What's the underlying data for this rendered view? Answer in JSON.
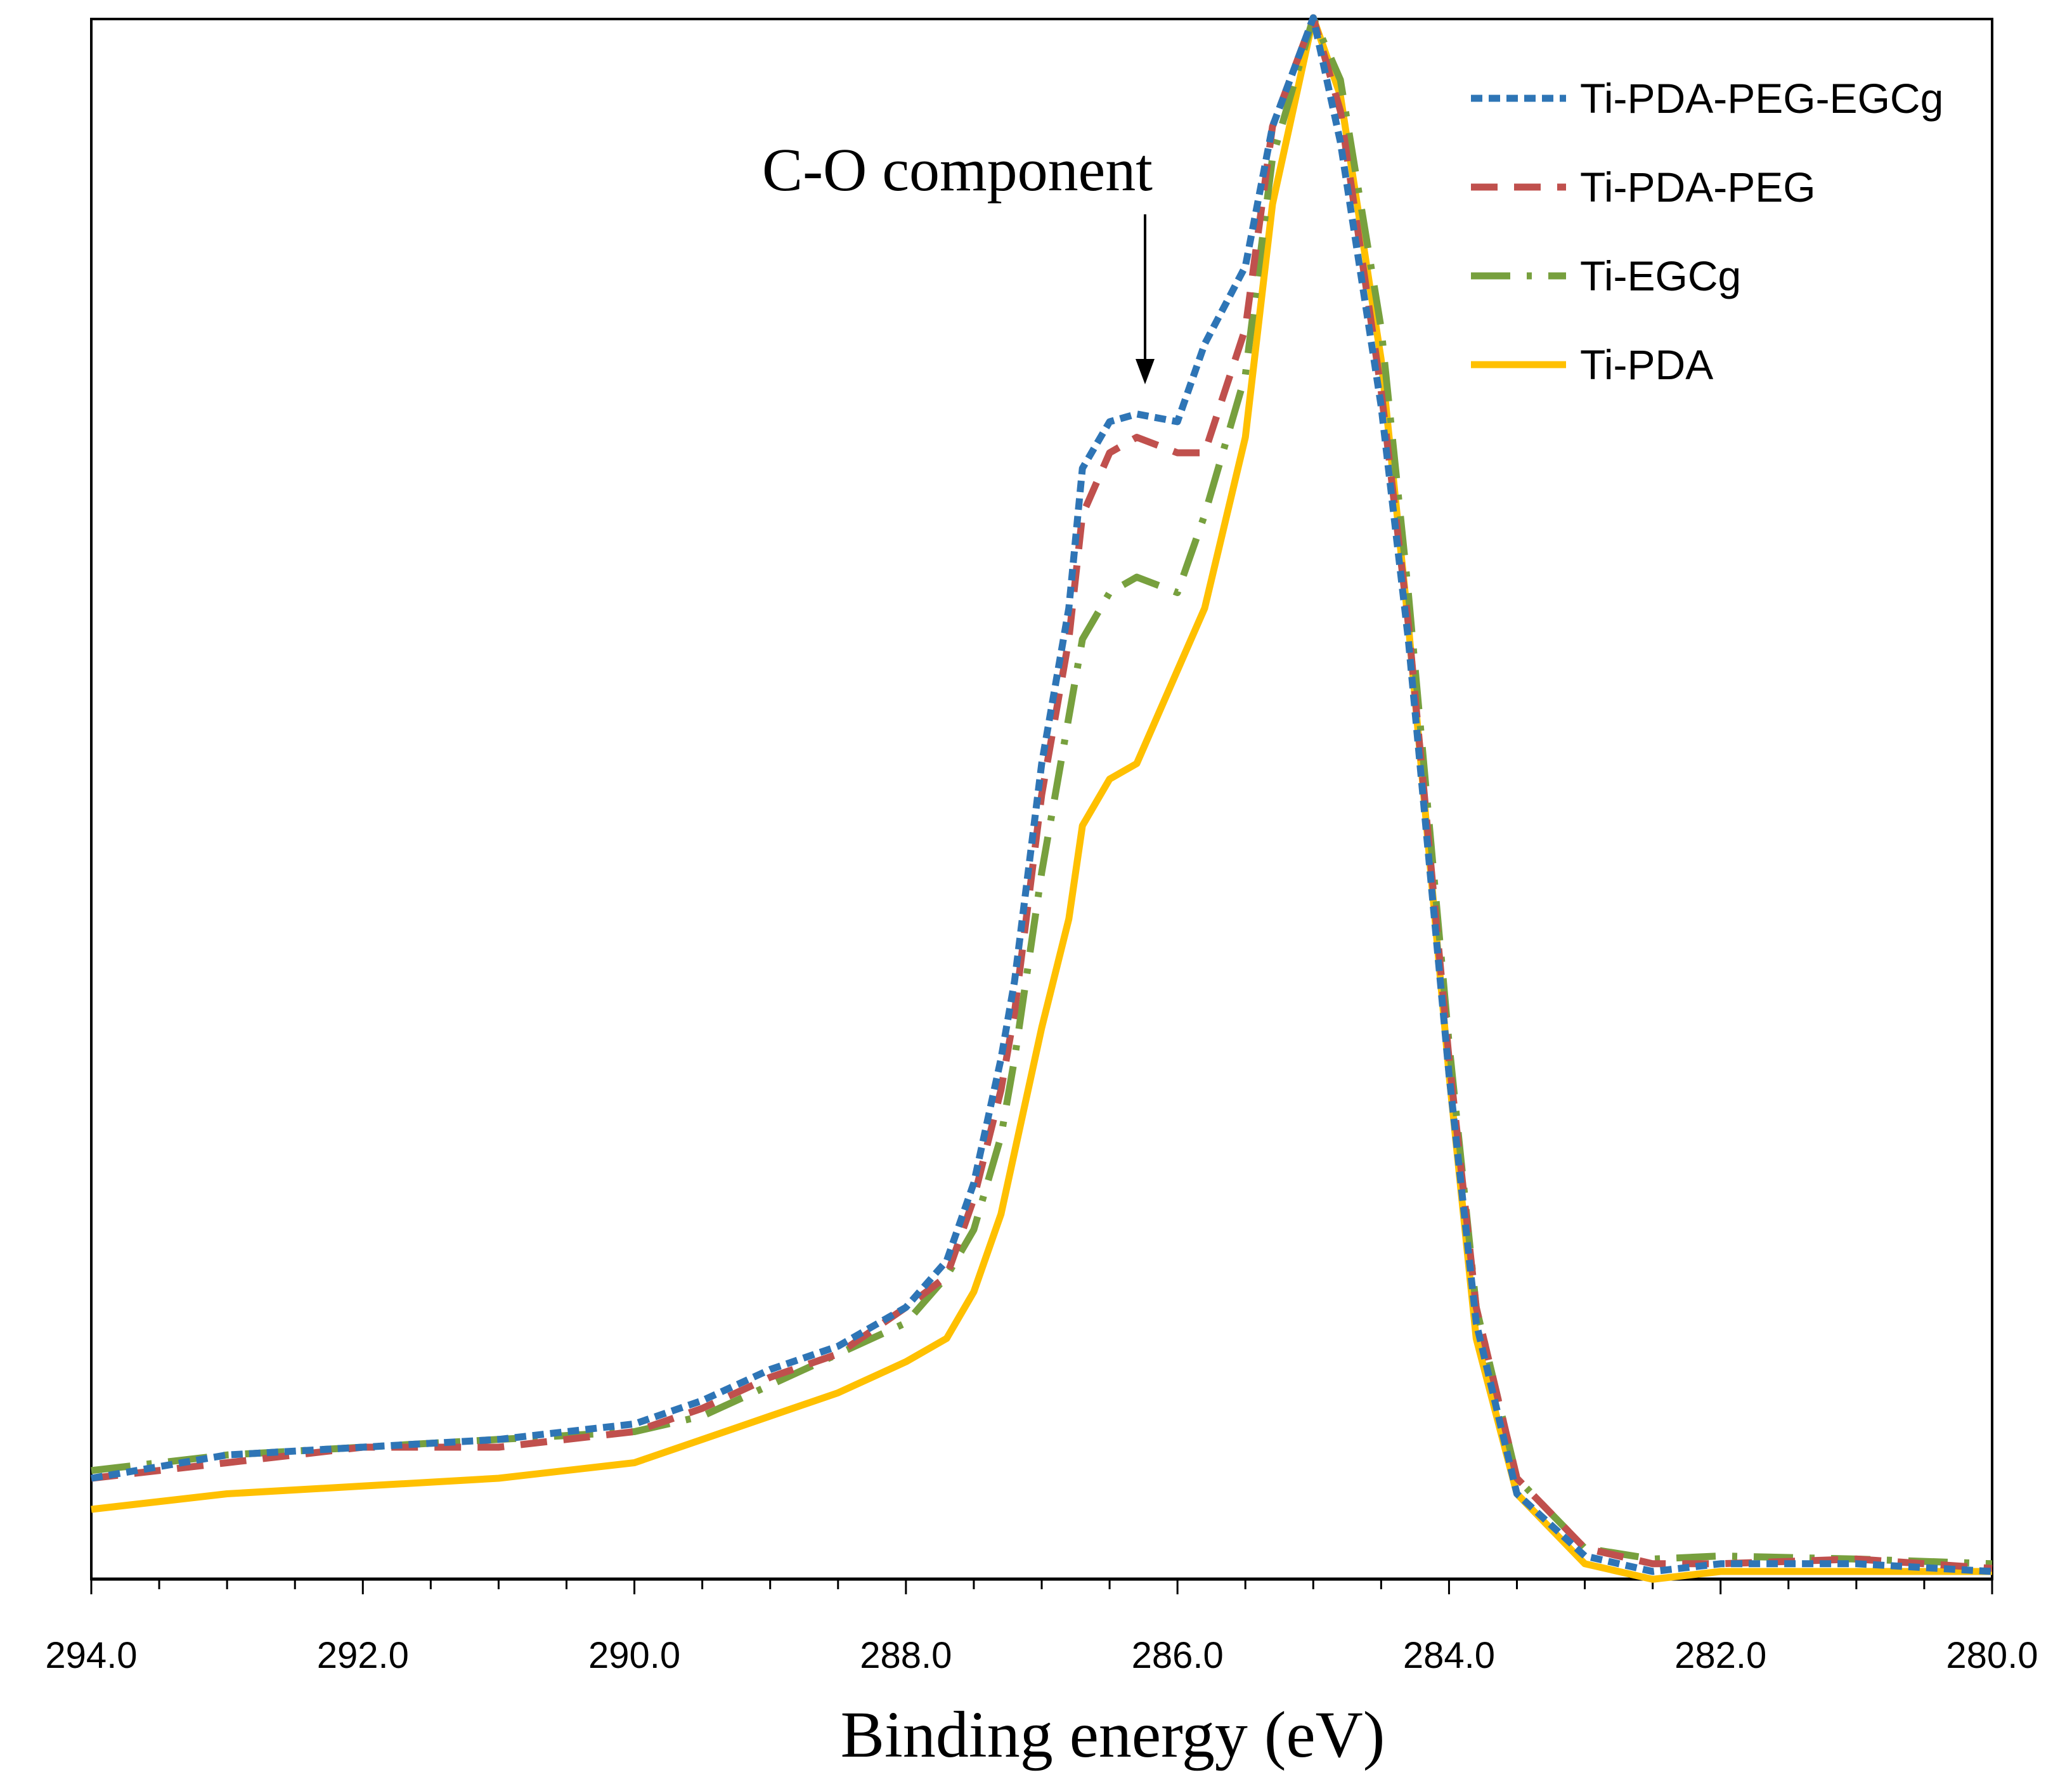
{
  "chart_data": {
    "type": "line",
    "title": "",
    "xlabel": "Binding energy (eV)",
    "ylabel": "",
    "xlim": [
      294.0,
      280.0
    ],
    "x_reversed": true,
    "ylim": [
      0,
      1
    ],
    "grid": false,
    "legend_position": "top-right",
    "x_ticks": [
      "294.0",
      "292.0",
      "290.0",
      "288.0",
      "286.0",
      "284.0",
      "282.0",
      "280.0"
    ],
    "annotation": {
      "text": "C-O component",
      "x": 286.3,
      "y": 0.77
    },
    "series": [
      {
        "name": "Ti-PDA-PEG-EGCg",
        "color": "#2E75B6",
        "dash": "dotted",
        "x": [
          294.0,
          293.0,
          292.0,
          291.0,
          290.0,
          289.5,
          289.0,
          288.5,
          288.0,
          287.7,
          287.5,
          287.3,
          287.2,
          287.0,
          286.8,
          286.7,
          286.5,
          286.3,
          286.0,
          285.8,
          285.5,
          285.3,
          285.0,
          284.8,
          284.5,
          284.3,
          284.0,
          283.8,
          283.5,
          283.0,
          282.5,
          282.0,
          281.0,
          280.0
        ],
        "y": [
          0.06,
          0.075,
          0.08,
          0.085,
          0.095,
          0.11,
          0.13,
          0.145,
          0.17,
          0.2,
          0.25,
          0.33,
          0.38,
          0.52,
          0.62,
          0.71,
          0.74,
          0.745,
          0.74,
          0.79,
          0.84,
          0.93,
          1.0,
          0.92,
          0.75,
          0.6,
          0.32,
          0.16,
          0.05,
          0.01,
          0.0,
          0.005,
          0.005,
          0.0
        ]
      },
      {
        "name": "Ti-PDA-PEG",
        "color": "#C0504D",
        "dash": "dashed",
        "x": [
          294.0,
          293.0,
          292.0,
          291.0,
          290.0,
          289.5,
          289.0,
          288.5,
          288.0,
          287.7,
          287.5,
          287.3,
          287.2,
          287.0,
          286.8,
          286.7,
          286.5,
          286.3,
          286.0,
          285.8,
          285.5,
          285.3,
          285.0,
          284.8,
          284.5,
          284.3,
          284.0,
          283.8,
          283.5,
          283.0,
          282.5,
          282.0,
          281.0,
          280.0
        ],
        "y": [
          0.06,
          0.07,
          0.08,
          0.08,
          0.09,
          0.105,
          0.125,
          0.14,
          0.17,
          0.19,
          0.24,
          0.31,
          0.36,
          0.5,
          0.6,
          0.68,
          0.72,
          0.73,
          0.72,
          0.72,
          0.8,
          0.93,
          1.0,
          0.94,
          0.76,
          0.61,
          0.33,
          0.17,
          0.06,
          0.015,
          0.005,
          0.005,
          0.008,
          0.002
        ]
      },
      {
        "name": "Ti-EGCg",
        "color": "#77A03E",
        "dash": "dashdot",
        "x": [
          294.0,
          293.0,
          292.0,
          291.0,
          290.0,
          289.5,
          289.0,
          288.5,
          288.0,
          287.7,
          287.5,
          287.3,
          287.2,
          287.0,
          286.8,
          286.7,
          286.5,
          286.3,
          286.0,
          285.8,
          285.5,
          285.3,
          285.0,
          284.8,
          284.5,
          284.3,
          284.0,
          283.8,
          283.5,
          283.0,
          282.5,
          282.0,
          281.0,
          280.0
        ],
        "y": [
          0.065,
          0.075,
          0.08,
          0.085,
          0.09,
          0.1,
          0.12,
          0.14,
          0.16,
          0.19,
          0.22,
          0.28,
          0.33,
          0.45,
          0.55,
          0.6,
          0.63,
          0.64,
          0.63,
          0.68,
          0.77,
          0.91,
          1.0,
          0.96,
          0.8,
          0.63,
          0.34,
          0.17,
          0.06,
          0.015,
          0.008,
          0.01,
          0.008,
          0.005
        ]
      },
      {
        "name": "Ti-PDA",
        "color": "#FFC000",
        "dash": "solid",
        "x": [
          294.0,
          293.0,
          292.0,
          291.0,
          290.0,
          289.5,
          289.0,
          288.5,
          288.0,
          287.7,
          287.5,
          287.3,
          287.2,
          287.0,
          286.8,
          286.7,
          286.5,
          286.3,
          286.0,
          285.8,
          285.5,
          285.3,
          285.0,
          284.8,
          284.5,
          284.3,
          284.0,
          283.8,
          283.5,
          283.0,
          282.5,
          282.0,
          281.0,
          280.0
        ],
        "y": [
          0.04,
          0.05,
          0.055,
          0.06,
          0.07,
          0.085,
          0.1,
          0.115,
          0.135,
          0.15,
          0.18,
          0.23,
          0.27,
          0.35,
          0.42,
          0.48,
          0.51,
          0.52,
          0.58,
          0.62,
          0.73,
          0.88,
          1.0,
          0.95,
          0.78,
          0.61,
          0.32,
          0.15,
          0.05,
          0.005,
          -0.005,
          0.0,
          0.0,
          0.0
        ]
      }
    ]
  }
}
